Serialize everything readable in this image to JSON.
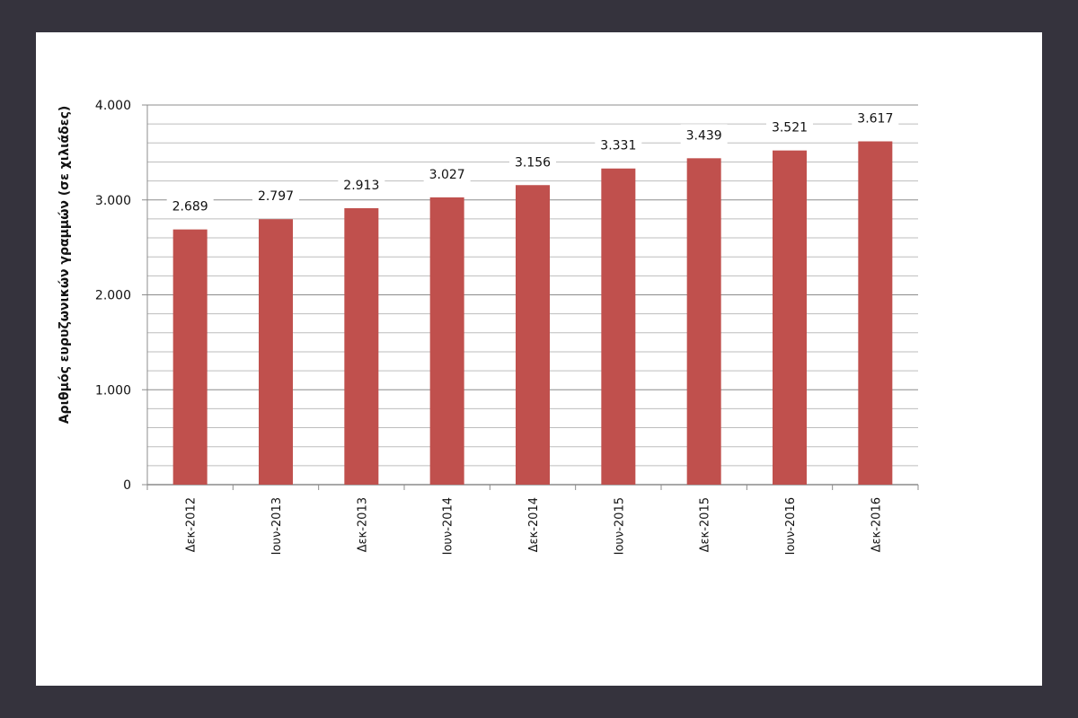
{
  "chart_data": {
    "type": "bar",
    "title": "",
    "xlabel": "",
    "ylabel": "Αριθμός ευρυζωνικών γραμμών (σε χιλιάδες)",
    "categories": [
      "Δεκ-2012",
      "Ιουν-2013",
      "Δεκ-2013",
      "Ιουν-2014",
      "Δεκ-2014",
      "Ιουν-2015",
      "Δεκ-2015",
      "Ιουν-2016",
      "Δεκ-2016"
    ],
    "values": [
      2689,
      2797,
      2913,
      3027,
      3156,
      3331,
      3439,
      3521,
      3617
    ],
    "data_labels": [
      "2.689",
      "2.797",
      "2.913",
      "3.027",
      "3.156",
      "3.331",
      "3.439",
      "3.521",
      "3.617"
    ],
    "ylim": [
      0,
      4000
    ],
    "yticks": [
      0,
      1000,
      2000,
      3000,
      4000
    ],
    "ytick_labels": [
      "0",
      "1.000",
      "2.000",
      "3.000",
      "4.000"
    ],
    "minor_grid_step": 200,
    "grid": true,
    "legend": "none",
    "bar_color": "#c0504d",
    "frame_color": "#35333d"
  }
}
